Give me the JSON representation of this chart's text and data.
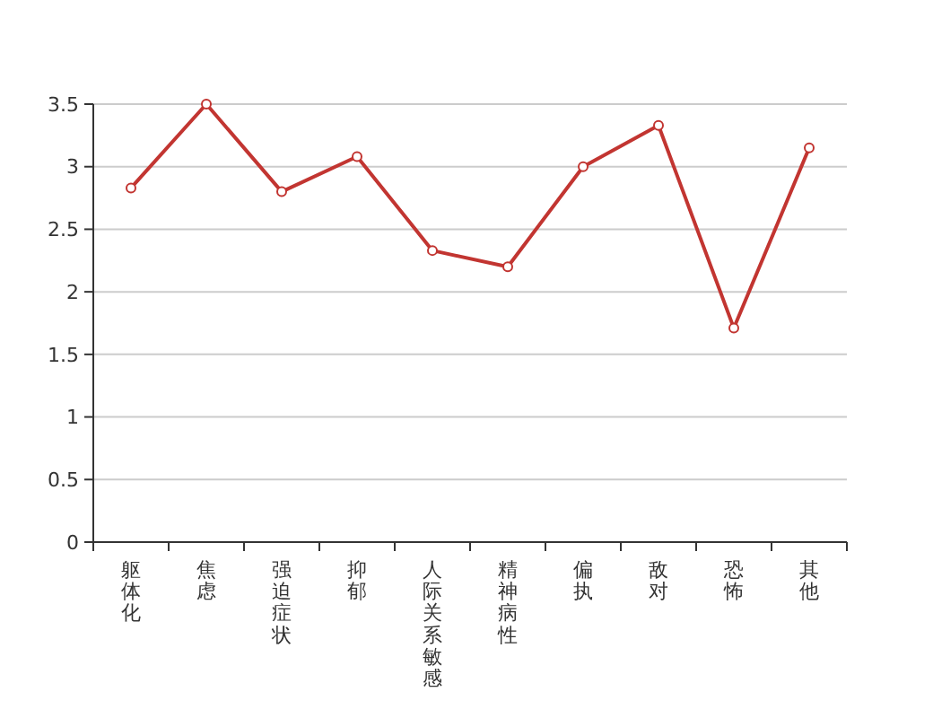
{
  "chart_data": {
    "type": "line",
    "categories": [
      "躯体化",
      "焦虑",
      "强迫症状",
      "抑郁",
      "人际关系敏感",
      "精神病性",
      "偏执",
      "敌对",
      "恐怖",
      "其他"
    ],
    "series": [
      {
        "color": "#c23531",
        "values": [
          2.83,
          3.5,
          2.8,
          3.08,
          2.33,
          2.2,
          3.0,
          3.33,
          1.71,
          3.15
        ]
      }
    ],
    "ylim": [
      0,
      3.5
    ],
    "yticks": [
      0,
      0.5,
      1,
      1.5,
      2,
      2.5,
      3,
      3.5
    ],
    "grid": "y",
    "marker": "circle",
    "line_style": "solid"
  }
}
